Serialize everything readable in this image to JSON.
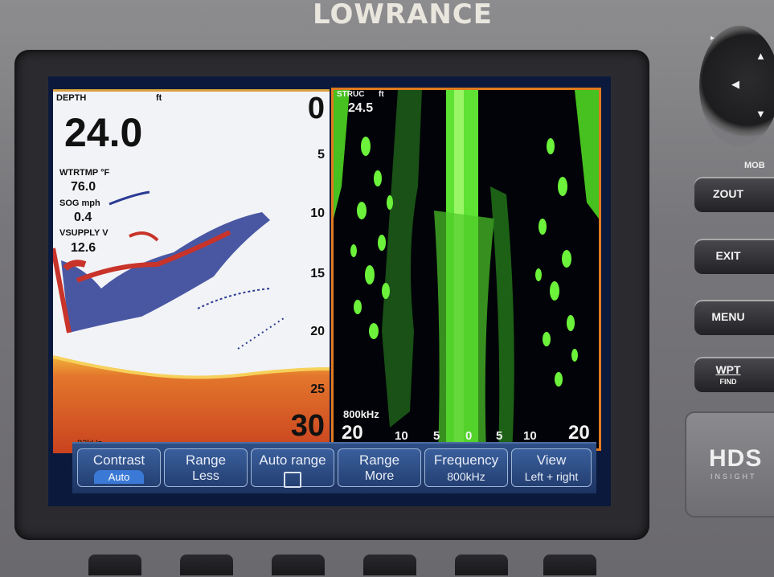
{
  "device": {
    "brand": "LOWRANCE",
    "model_logo": "HDS",
    "model_sub": "INSIGHT",
    "mob_label": "MOB"
  },
  "left_panel": {
    "title": "DEPTH",
    "unit": "ft",
    "depth_value": "24.0",
    "readings": [
      {
        "label": "WTRTMP °F",
        "value": "76.0"
      },
      {
        "label": "SOG   mph",
        "value": "0.4"
      },
      {
        "label": "VSUPPLY V",
        "value": "12.6"
      }
    ],
    "scale": [
      "0",
      "5",
      "10",
      "15",
      "20",
      "25",
      "30"
    ],
    "frequency": "83kHz"
  },
  "right_panel": {
    "title": "STRUC",
    "unit": "ft",
    "depth_value": "24.5",
    "frequency": "800kHz",
    "range_left": "20",
    "range_right": "20",
    "scale": [
      "10",
      "5",
      "0",
      "5",
      "10"
    ]
  },
  "softkeys": [
    {
      "line1": "Contrast",
      "line2": "Auto"
    },
    {
      "line1": "Range",
      "line2": "Less"
    },
    {
      "line1": "Auto range",
      "line2": ""
    },
    {
      "line1": "Range",
      "line2": "More"
    },
    {
      "line1": "Frequency",
      "line2": "800kHz"
    },
    {
      "line1": "View",
      "line2": "Left + right"
    }
  ],
  "hardware_buttons": [
    {
      "label": "ZOUT",
      "sub": ""
    },
    {
      "label": "EXIT",
      "sub": ""
    },
    {
      "label": "MENU",
      "sub": ""
    },
    {
      "label": "WPT",
      "sub": "FIND"
    }
  ],
  "colors": {
    "sonar_bottom": "#d9542a",
    "structure_green": "#6cf23a",
    "softkey_bar": "#2e4f86",
    "panel_border": "#e07a1e"
  }
}
